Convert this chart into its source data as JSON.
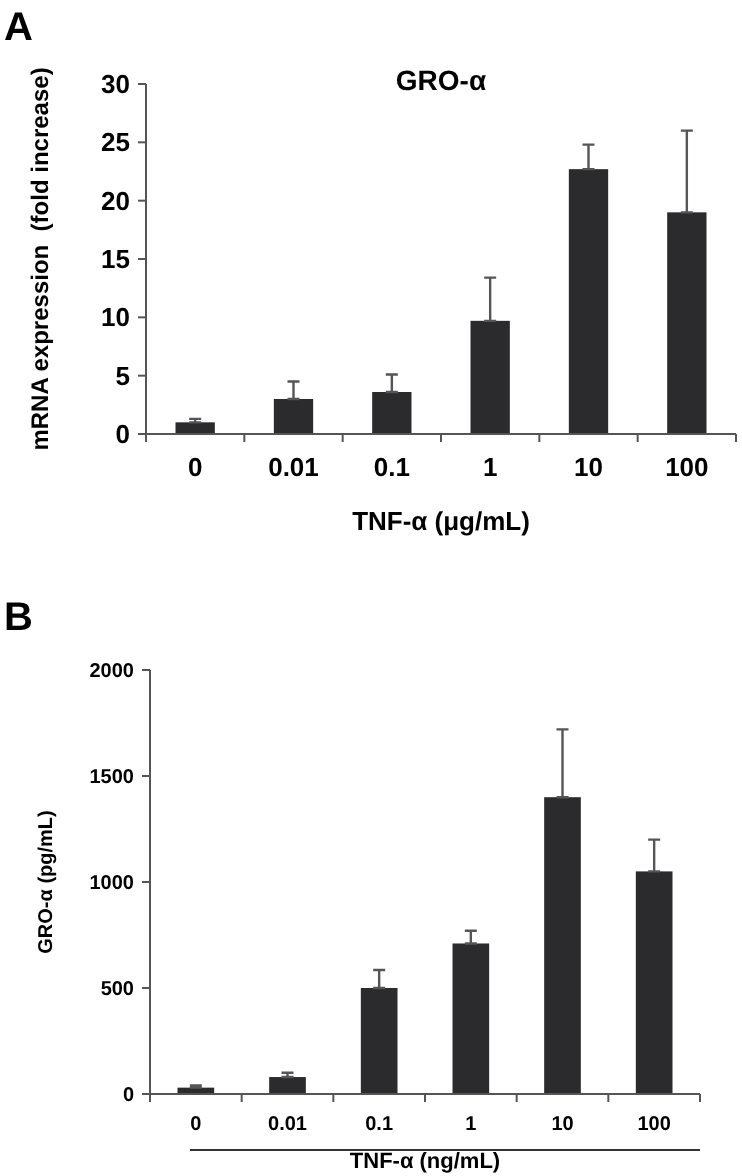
{
  "chart_data": [
    {
      "type": "bar",
      "title": "GRO-α",
      "xlabel": "TNF-α (μg/mL)",
      "ylabel": "mRNA expression  (fold increase)",
      "annotations": [
        "A"
      ],
      "categories": [
        "0",
        "0.01",
        "0.1",
        "1",
        "10",
        "100"
      ],
      "series": [
        {
          "color": "#2b2b2e",
          "values": [
            1,
            3,
            3.6,
            9.7,
            22.7,
            19
          ],
          "errors": [
            [
              1,
              1.3
            ],
            [
              3,
              4.5
            ],
            [
              3.6,
              5.1
            ],
            [
              9.7,
              13.4
            ],
            [
              22.7,
              24.8
            ],
            [
              19,
              26
            ]
          ]
        }
      ],
      "ylim": [
        0,
        30
      ],
      "yticks": [
        0,
        5,
        10,
        15,
        20,
        25,
        30
      ],
      "grid": false
    },
    {
      "type": "bar",
      "xlabel": "TNF-α (ng/mL)",
      "ylabel": "GRO-α (pg/mL)",
      "annotations": [
        "B"
      ],
      "categories": [
        "0",
        "0.01",
        "0.1",
        "1",
        "10",
        "100"
      ],
      "series": [
        {
          "color": "#2b2b2e",
          "values": [
            30,
            80,
            500,
            710,
            1400,
            1050
          ],
          "errors": [
            [
              30,
              40
            ],
            [
              80,
              100
            ],
            [
              500,
              585
            ],
            [
              710,
              770
            ],
            [
              1400,
              1720
            ],
            [
              1050,
              1200
            ]
          ]
        }
      ],
      "ylim": [
        0,
        2000
      ],
      "yticks": [
        0,
        500,
        1000,
        1500,
        2000
      ],
      "grid": false
    }
  ]
}
